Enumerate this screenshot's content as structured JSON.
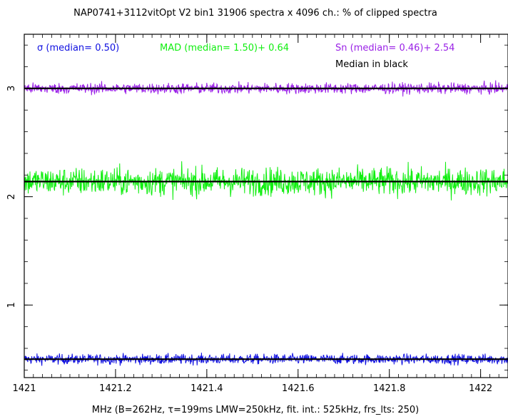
{
  "chart_data": {
    "type": "line",
    "title": "NAP0741+3112vitOpt V2 bin1 31906 spectra x 4096 ch.: % of clipped spectra",
    "xlabel": "MHz (B=262Hz, τ=199ms LMW=250kHz, fit. int.: 525kHz, frs_lts: 250)",
    "ylabel": "",
    "xlim": [
      1421.0,
      1422.06
    ],
    "ylim": [
      0.33,
      3.5
    ],
    "x_ticks": [
      1421,
      1421.2,
      1421.4,
      1421.6,
      1421.8,
      1422
    ],
    "x_tick_labels": [
      "1421",
      "1421.2",
      "1421.4",
      "1421.6",
      "1421.8",
      "1422"
    ],
    "y_ticks": [
      1,
      2,
      3
    ],
    "y_tick_labels": [
      "1",
      "2",
      "3"
    ],
    "grid": false,
    "legend_position": "top",
    "series": [
      {
        "name": "σ (median= 0.50)",
        "color": "#1010e0",
        "median": 0.5,
        "min": 0.37,
        "max": 0.62
      },
      {
        "name": "MAD (median= 1.50)+ 0.64",
        "color": "#10ee10",
        "median": 2.14,
        "min": 1.82,
        "max": 2.5
      },
      {
        "name": "Sn (median= 0.46)+ 2.54",
        "color": "#9a22e6",
        "median": 3.0,
        "min": 2.86,
        "max": 3.14
      }
    ],
    "median_note": "Median in black",
    "median_color": "#000000"
  }
}
